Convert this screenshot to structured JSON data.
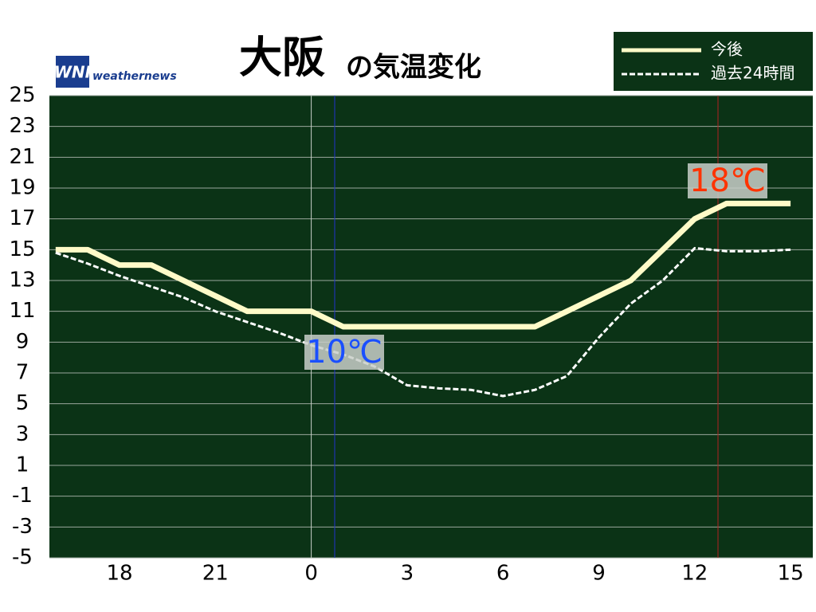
{
  "chart_data": {
    "type": "line",
    "title": "大阪",
    "subtitle": "の気温変化",
    "logo": {
      "mark": "WNI",
      "text": "weathernews"
    },
    "categories": [
      null,
      null,
      "18",
      null,
      null,
      "21",
      null,
      null,
      "0",
      null,
      null,
      "3",
      null,
      null,
      "6",
      null,
      null,
      "9",
      null,
      null,
      "12",
      null,
      null,
      "15"
    ],
    "series": [
      {
        "name": "今後",
        "color": "#fffbc8",
        "style": "solid",
        "values": [
          15,
          15,
          14,
          14,
          13,
          12,
          11,
          11,
          11,
          10,
          10,
          10,
          10,
          10,
          10,
          10,
          11,
          12,
          13,
          15,
          17,
          18,
          18,
          18
        ]
      },
      {
        "name": "過去24時間",
        "color": "#ffffff",
        "style": "dashed",
        "values": [
          14.8,
          14.1,
          13.3,
          12.6,
          11.9,
          11.0,
          10.3,
          9.6,
          8.8,
          8.2,
          7.4,
          6.2,
          6.0,
          5.9,
          5.5,
          5.9,
          6.8,
          9.3,
          11.5,
          13.0,
          15.1,
          14.9,
          14.9,
          15.0
        ]
      }
    ],
    "annotations": [
      {
        "text": "10℃",
        "color": "#1a4fff",
        "line_color": "#2233cc"
      },
      {
        "text": "18℃",
        "color": "#ff3300",
        "line_color": "#b22222"
      }
    ],
    "ylim": [
      -5,
      25
    ],
    "yticks": [
      25,
      23,
      21,
      19,
      17,
      15,
      13,
      11,
      9,
      7,
      5,
      3,
      1,
      -1,
      -3,
      -5
    ],
    "grid": true,
    "background": "#0b3316",
    "legend": "upper right"
  }
}
